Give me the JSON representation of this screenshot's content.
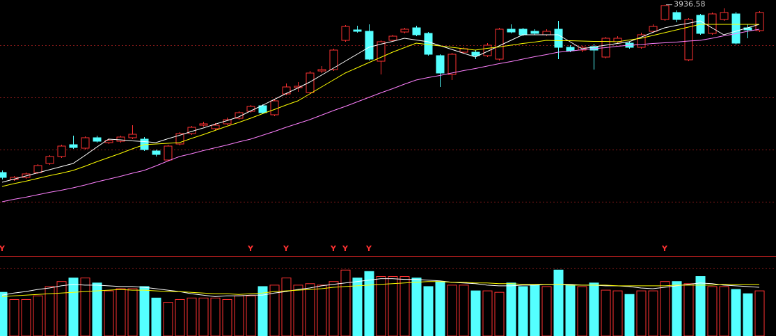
{
  "chart_data": [
    {
      "type": "candlestick",
      "ylim": [
        3260,
        3950
      ],
      "grid": true,
      "gridlines": [
        3820,
        3670,
        3520,
        3370
      ],
      "up_color": "#ff3232",
      "down_color": "#54ffff",
      "annotation": "3936.58",
      "open": [
        3454,
        3434,
        3440,
        3454,
        3480,
        3500,
        3534,
        3524,
        3554,
        3540,
        3544,
        3554,
        3550,
        3516,
        3490,
        3536,
        3566,
        3590,
        3580,
        3594,
        3610,
        3630,
        3646,
        3620,
        3680,
        3698,
        3684,
        3746,
        3750,
        3834,
        3864,
        3860,
        3774,
        3834,
        3858,
        3870,
        3854,
        3790,
        3736,
        3800,
        3800,
        3790,
        3780,
        3866,
        3866,
        3860,
        3850,
        3866,
        3814,
        3806,
        3816,
        3786,
        3830,
        3826,
        3814,
        3860,
        3894,
        3914,
        3778,
        3906,
        3854,
        3894,
        3910,
        3870,
        3862
      ],
      "high": [
        3460,
        3444,
        3454,
        3478,
        3504,
        3534,
        3560,
        3558,
        3560,
        3552,
        3560,
        3590,
        3556,
        3520,
        3534,
        3570,
        3588,
        3600,
        3596,
        3612,
        3630,
        3648,
        3650,
        3666,
        3710,
        3714,
        3746,
        3760,
        3810,
        3878,
        3876,
        3880,
        3834,
        3850,
        3870,
        3876,
        3858,
        3794,
        3798,
        3814,
        3806,
        3826,
        3870,
        3880,
        3870,
        3866,
        3866,
        3890,
        3820,
        3818,
        3824,
        3844,
        3846,
        3830,
        3856,
        3880,
        3936.58,
        3920,
        3898,
        3910,
        3914,
        3926,
        3916,
        3880,
        3918
      ],
      "low": [
        3434,
        3430,
        3436,
        3450,
        3476,
        3496,
        3522,
        3520,
        3540,
        3536,
        3540,
        3550,
        3516,
        3500,
        3486,
        3532,
        3562,
        3586,
        3576,
        3590,
        3606,
        3626,
        3622,
        3616,
        3676,
        3686,
        3680,
        3740,
        3746,
        3830,
        3856,
        3776,
        3736,
        3830,
        3854,
        3846,
        3790,
        3700,
        3720,
        3796,
        3780,
        3786,
        3776,
        3854,
        3846,
        3850,
        3846,
        3780,
        3800,
        3800,
        3750,
        3782,
        3826,
        3810,
        3810,
        3856,
        3890,
        3886,
        3774,
        3850,
        3850,
        3890,
        3822,
        3840,
        3858
      ],
      "close": [
        3440,
        3440,
        3450,
        3474,
        3500,
        3530,
        3526,
        3554,
        3544,
        3546,
        3556,
        3564,
        3520,
        3506,
        3530,
        3566,
        3584,
        3594,
        3590,
        3606,
        3626,
        3644,
        3626,
        3660,
        3700,
        3702,
        3740,
        3750,
        3806,
        3874,
        3860,
        3780,
        3830,
        3846,
        3866,
        3850,
        3794,
        3740,
        3794,
        3810,
        3790,
        3820,
        3866,
        3858,
        3850,
        3854,
        3860,
        3814,
        3804,
        3814,
        3806,
        3840,
        3840,
        3814,
        3850,
        3874,
        3934,
        3894,
        3894,
        3854,
        3910,
        3914,
        3826,
        3864,
        3914
      ],
      "lines": [
        {
          "color": "#ffffff",
          "values": [
            3426,
            3435,
            3444,
            3453,
            3462,
            3471,
            3480,
            3503,
            3527,
            3550,
            3548,
            3545,
            3543,
            3540,
            3551,
            3561,
            3572,
            3582,
            3593,
            3603,
            3614,
            3631,
            3647,
            3664,
            3681,
            3697,
            3714,
            3734,
            3754,
            3774,
            3794,
            3814,
            3823,
            3831,
            3840,
            3835,
            3830,
            3819,
            3808,
            3797,
            3786,
            3802,
            3818,
            3834,
            3850,
            3850,
            3850,
            3850,
            3830,
            3810,
            3815,
            3820,
            3825,
            3830,
            3843,
            3857,
            3870,
            3877,
            3883,
            3890,
            3870,
            3850,
            3860,
            3870,
            3880
          ]
        },
        {
          "color": "#ffff00",
          "values": [
            3414,
            3422,
            3429,
            3437,
            3445,
            3452,
            3460,
            3472,
            3485,
            3497,
            3509,
            3522,
            3534,
            3536,
            3538,
            3540,
            3552,
            3563,
            3575,
            3587,
            3598,
            3610,
            3623,
            3635,
            3648,
            3660,
            3680,
            3700,
            3720,
            3740,
            3755,
            3770,
            3785,
            3800,
            3813,
            3826,
            3822,
            3818,
            3814,
            3810,
            3806,
            3811,
            3815,
            3820,
            3825,
            3829,
            3834,
            3833,
            3833,
            3832,
            3831,
            3831,
            3830,
            3835,
            3840,
            3848,
            3856,
            3864,
            3872,
            3880,
            3880,
            3880,
            3880,
            3880,
            3880
          ]
        },
        {
          "color": "#ff80ff",
          "values": [
            3370,
            3377,
            3383,
            3390,
            3397,
            3403,
            3410,
            3418,
            3427,
            3435,
            3443,
            3452,
            3460,
            3473,
            3487,
            3500,
            3508,
            3517,
            3525,
            3533,
            3542,
            3550,
            3561,
            3572,
            3584,
            3595,
            3606,
            3619,
            3632,
            3644,
            3657,
            3670,
            3683,
            3695,
            3708,
            3720,
            3727,
            3733,
            3740,
            3747,
            3753,
            3760,
            3767,
            3773,
            3780,
            3787,
            3793,
            3800,
            3803,
            3807,
            3810,
            3813,
            3817,
            3820,
            3822,
            3825,
            3827,
            3829,
            3832,
            3834,
            3840,
            3847,
            3853,
            3860,
            3866
          ]
        }
      ],
      "signal_labels": [
        "Y",
        null,
        null,
        null,
        null,
        null,
        null,
        null,
        null,
        null,
        null,
        null,
        null,
        null,
        null,
        null,
        null,
        null,
        null,
        null,
        null,
        "Y",
        null,
        null,
        "Y",
        null,
        null,
        null,
        "Y",
        "Y",
        null,
        "Y",
        null,
        null,
        null,
        null,
        null,
        null,
        null,
        null,
        null,
        null,
        null,
        null,
        null,
        null,
        null,
        null,
        null,
        null,
        null,
        null,
        null,
        null,
        null,
        null,
        "Y",
        null,
        null,
        null,
        null,
        null,
        null,
        null,
        null
      ]
    },
    {
      "type": "bar",
      "ylim": [
        0,
        100
      ],
      "grid": true,
      "gridlines": [
        95
      ],
      "values": [
        61,
        51,
        51,
        56,
        69,
        76,
        81,
        81,
        74,
        63,
        66,
        66,
        69,
        53,
        47,
        51,
        53,
        53,
        53,
        51,
        56,
        56,
        69,
        71,
        81,
        71,
        73,
        71,
        76,
        92,
        81,
        90,
        83,
        83,
        83,
        81,
        69,
        76,
        71,
        71,
        63,
        63,
        61,
        74,
        69,
        71,
        69,
        92,
        71,
        69,
        74,
        64,
        63,
        58,
        63,
        63,
        76,
        76,
        73,
        83,
        69,
        69,
        65,
        59,
        63
      ],
      "lines": [
        {
          "color": "#ffffff",
          "values": [
            57,
            60,
            62,
            65,
            67,
            70,
            72,
            71,
            71,
            70,
            69,
            69,
            68,
            66,
            64,
            62,
            59,
            57,
            55,
            56,
            56,
            57,
            57,
            60,
            62,
            65,
            67,
            70,
            72,
            74,
            76,
            78,
            80,
            80,
            79,
            79,
            78,
            77,
            75,
            74,
            73,
            71,
            70,
            70,
            71,
            71,
            72,
            72,
            72,
            71,
            71,
            70,
            70,
            69,
            67,
            66,
            68,
            70,
            72,
            74,
            73,
            71,
            70,
            69,
            68
          ]
        },
        {
          "color": "#ffff00",
          "values": [
            55,
            56,
            57,
            58,
            59,
            60,
            61,
            62,
            63,
            64,
            65,
            64,
            64,
            63,
            62,
            62,
            61,
            60,
            59,
            59,
            58,
            59,
            60,
            62,
            63,
            64,
            65,
            66,
            68,
            69,
            70,
            71,
            72,
            73,
            74,
            75,
            76,
            76,
            75,
            75,
            74,
            74,
            73,
            73,
            72,
            72,
            72,
            72,
            71,
            71,
            71,
            71,
            70,
            70,
            70,
            70,
            70,
            71,
            71,
            71,
            71,
            72,
            72,
            72,
            72
          ]
        }
      ]
    }
  ]
}
